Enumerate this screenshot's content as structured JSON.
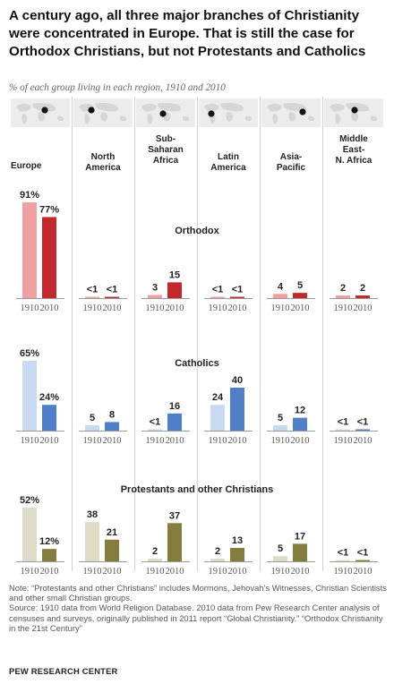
{
  "title": "A century ago, all three major branches of Christianity were concentrated in Europe. That is still the case for Orthodox Christians, but not Protestants and Catholics",
  "subtitle": "% of each group living in each region, 1910 and 2010",
  "note": "Note: “Protestants and other Christians” includes Mormons, Jehovah’s Witnesses, Christian Scientists and other small Christian groups.",
  "source": "Source: 1910 data from World Religion Database. 2010 data from Pew Research Center analysis of censuses and surveys, originally published in 2011 report “Global Christianity.” “Orthodox Christianity in the 21st Century”",
  "brand": "PEW RESEARCH CENTER",
  "icons": {
    "map": "world-map-icon",
    "dot": "region-dot-icon"
  },
  "chart_data": {
    "type": "bar",
    "regions": [
      {
        "label": [
          "Europe"
        ]
      },
      {
        "label": [
          "North",
          "America"
        ]
      },
      {
        "label": [
          "Sub-",
          "Saharan",
          "Africa"
        ]
      },
      {
        "label": [
          "Latin",
          "America"
        ]
      },
      {
        "label": [
          "Asia-",
          "Pacific"
        ]
      },
      {
        "label": [
          "Middle",
          "East-",
          "N. Africa"
        ]
      }
    ],
    "years": [
      "1910",
      "2010"
    ],
    "panels": [
      {
        "name": "Orthodox",
        "colors": [
          "#f0a0a0",
          "#c3282d"
        ],
        "values_1910": [
          91,
          0.4,
          3,
          0.4,
          4,
          2
        ],
        "values_2010": [
          77,
          0.4,
          15,
          0.4,
          5,
          2
        ],
        "labels_1910": [
          "91%",
          "<1",
          "3",
          "<1",
          "4",
          "2"
        ],
        "labels_2010": [
          "77%",
          "<1",
          "15",
          "<1",
          "5",
          "2"
        ]
      },
      {
        "name": "Catholics",
        "colors": [
          "#c8daf2",
          "#4f7fc6"
        ],
        "values_1910": [
          65,
          5,
          0.4,
          24,
          5,
          0.4
        ],
        "values_2010": [
          24,
          8,
          16,
          40,
          12,
          0.4
        ],
        "labels_1910": [
          "65%",
          "5",
          "<1",
          "24",
          "5",
          "<1"
        ],
        "labels_2010": [
          "24%",
          "8",
          "16",
          "40",
          "12",
          "<1"
        ]
      },
      {
        "name": "Protestants and other Christians",
        "colors": [
          "#dedbc6",
          "#847e3e"
        ],
        "values_1910": [
          52,
          38,
          2,
          2,
          5,
          0.4
        ],
        "values_2010": [
          12,
          21,
          37,
          13,
          17,
          0.4
        ],
        "labels_1910": [
          "52%",
          "38",
          "2",
          "2",
          "5",
          "<1"
        ],
        "labels_2010": [
          "12%",
          "21",
          "37",
          "13",
          "17",
          "<1"
        ]
      }
    ]
  }
}
